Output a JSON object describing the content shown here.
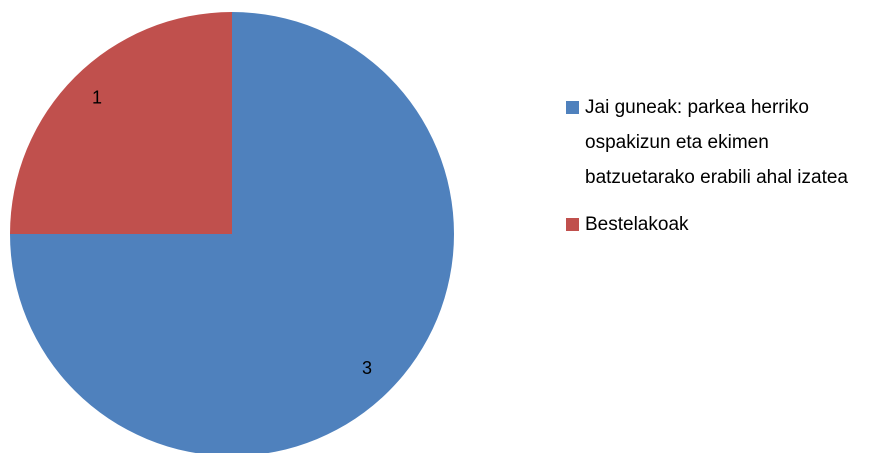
{
  "chart_data": {
    "type": "pie",
    "categories": [
      "Jai guneak: parkea herriko ospakizun eta ekimen batzuetarako erabili ahal izatea",
      "Bestelakoak"
    ],
    "values": [
      3,
      1
    ],
    "colors": [
      "#4f81bd",
      "#c0504d"
    ]
  }
}
